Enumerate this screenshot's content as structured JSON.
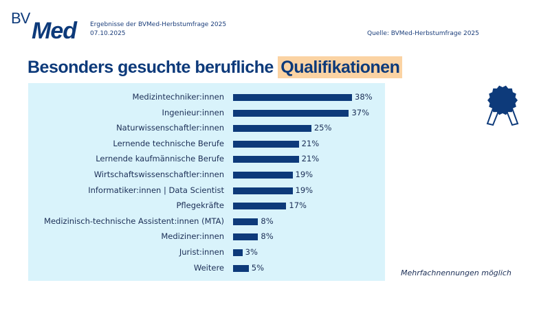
{
  "header": {
    "logo_text": "BVMed",
    "logo_bv": "BV",
    "logo_med": "Med",
    "subtitle": "Ergebnisse der BVMed-Herbstumfrage 2025",
    "date": "07.10.2025",
    "source": "Quelle: BVMed-Herbstumfrage 2025"
  },
  "title_main": "Besonders gesuchte berufliche ",
  "title_highlight": "Qualifikationen",
  "note": "Mehrfachnennungen möglich",
  "colors": {
    "bar": "#0d3a7a",
    "panel": "#d9f3fb",
    "highlight": "#fbd3a3"
  },
  "icon": "award-rosette-icon",
  "chart_data": {
    "type": "bar",
    "orientation": "horizontal",
    "title": "Besonders gesuchte berufliche Qualifikationen",
    "unit": "%",
    "categories": [
      "Medizintechniker:innen",
      "Ingenieur:innen",
      "Naturwissenschaftler:innen",
      "Lernende technische Berufe",
      "Lernende kaufmännische Berufe",
      "Wirtschaftswissenschaftler:innen",
      "Informatiker:innen | Data Scientist",
      "Pflegekräfte",
      "Medizinisch-technische Assistent:innen (MTA)",
      "Mediziner:innen",
      "Jurist:innen",
      "Weitere"
    ],
    "values": [
      38,
      37,
      25,
      21,
      21,
      19,
      19,
      17,
      8,
      8,
      3,
      5
    ],
    "labels": [
      "38%",
      "37%",
      "25%",
      "21%",
      "21%",
      "19%",
      "19%",
      "17%",
      "8%",
      "8%",
      "3%",
      "5%"
    ],
    "xlim": [
      0,
      40
    ]
  }
}
